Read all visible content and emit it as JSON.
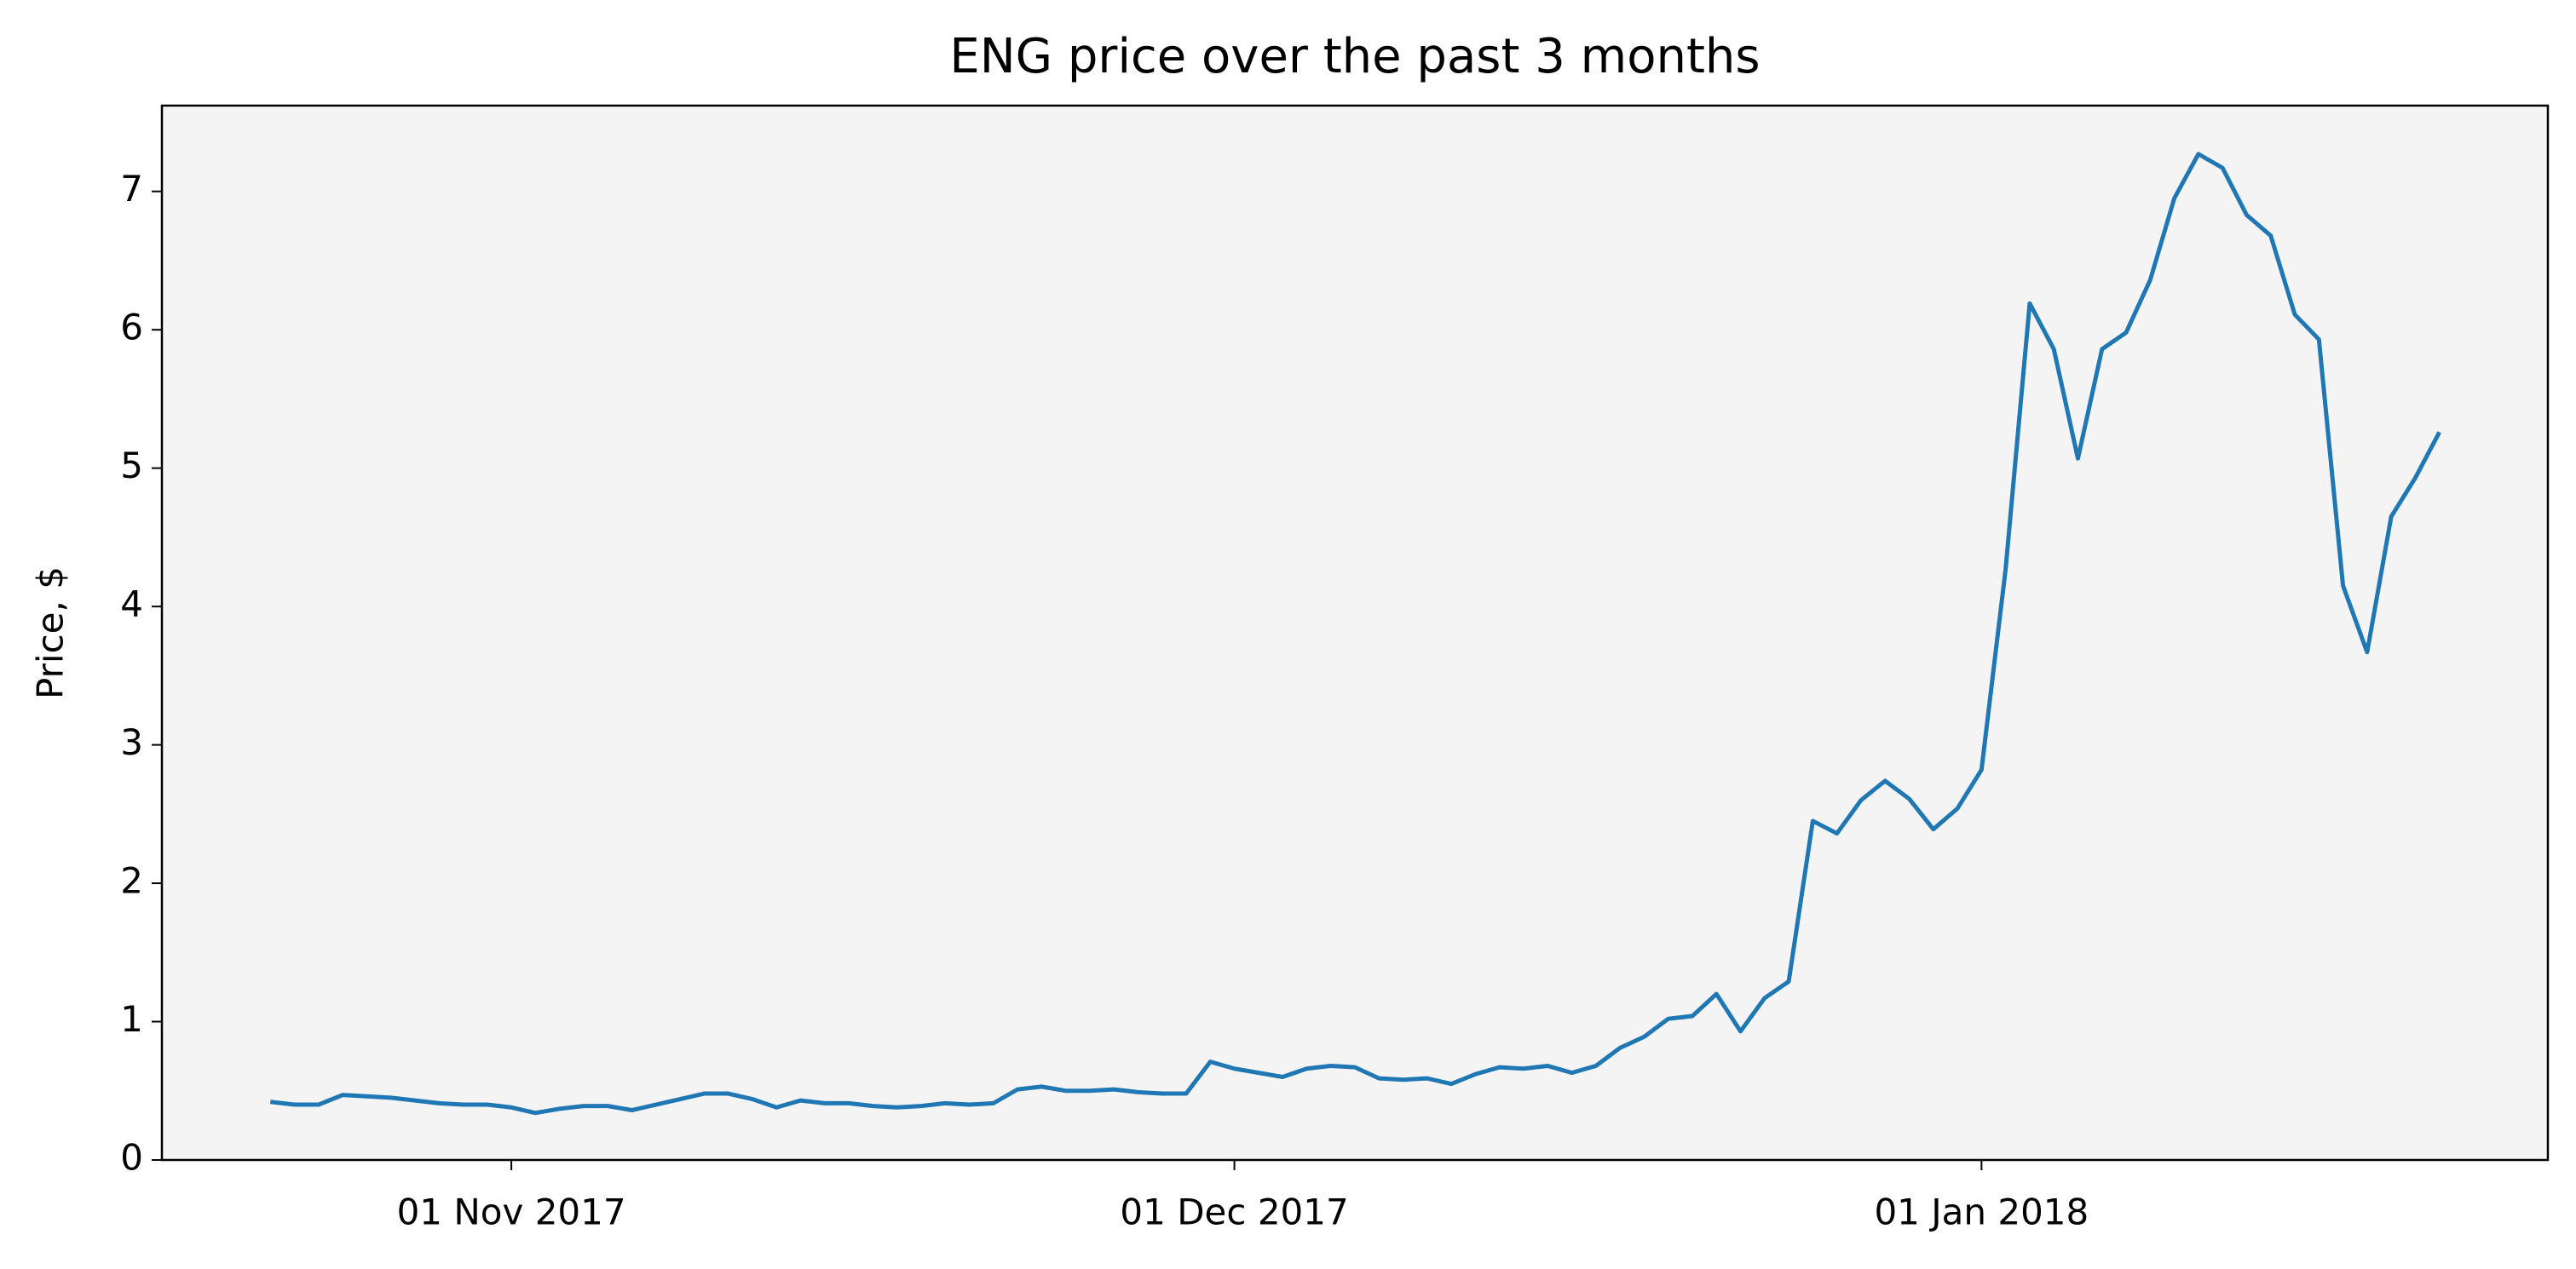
{
  "chart_data": {
    "type": "line",
    "title": "ENG price over the past 3 months",
    "y_label": "Price, $",
    "x": [
      "2017-10-22",
      "2017-10-23",
      "2017-10-24",
      "2017-10-25",
      "2017-10-26",
      "2017-10-27",
      "2017-10-28",
      "2017-10-29",
      "2017-10-30",
      "2017-10-31",
      "2017-11-01",
      "2017-11-02",
      "2017-11-03",
      "2017-11-04",
      "2017-11-05",
      "2017-11-06",
      "2017-11-07",
      "2017-11-08",
      "2017-11-09",
      "2017-11-10",
      "2017-11-11",
      "2017-11-12",
      "2017-11-13",
      "2017-11-14",
      "2017-11-15",
      "2017-11-16",
      "2017-11-17",
      "2017-11-18",
      "2017-11-19",
      "2017-11-20",
      "2017-11-21",
      "2017-11-22",
      "2017-11-23",
      "2017-11-24",
      "2017-11-25",
      "2017-11-26",
      "2017-11-27",
      "2017-11-28",
      "2017-11-29",
      "2017-11-30",
      "2017-12-01",
      "2017-12-02",
      "2017-12-03",
      "2017-12-04",
      "2017-12-05",
      "2017-12-06",
      "2017-12-07",
      "2017-12-08",
      "2017-12-09",
      "2017-12-10",
      "2017-12-11",
      "2017-12-12",
      "2017-12-13",
      "2017-12-14",
      "2017-12-15",
      "2017-12-16",
      "2017-12-17",
      "2017-12-18",
      "2017-12-19",
      "2017-12-20",
      "2017-12-21",
      "2017-12-22",
      "2017-12-23",
      "2017-12-24",
      "2017-12-25",
      "2017-12-26",
      "2017-12-27",
      "2017-12-28",
      "2017-12-29",
      "2017-12-30",
      "2017-12-31",
      "2018-01-01",
      "2018-01-02",
      "2018-01-03",
      "2018-01-04",
      "2018-01-05",
      "2018-01-06",
      "2018-01-07",
      "2018-01-08",
      "2018-01-09",
      "2018-01-10",
      "2018-01-11",
      "2018-01-12",
      "2018-01-13",
      "2018-01-14",
      "2018-01-15",
      "2018-01-16",
      "2018-01-17",
      "2018-01-18",
      "2018-01-19",
      "2018-01-20"
    ],
    "series": [
      {
        "color": "#1f77b4",
        "values": [
          0.42,
          0.4,
          0.4,
          0.47,
          0.46,
          0.45,
          0.43,
          0.41,
          0.4,
          0.4,
          0.38,
          0.34,
          0.37,
          0.39,
          0.39,
          0.36,
          0.4,
          0.44,
          0.48,
          0.48,
          0.44,
          0.38,
          0.43,
          0.41,
          0.41,
          0.39,
          0.38,
          0.39,
          0.41,
          0.4,
          0.41,
          0.51,
          0.53,
          0.5,
          0.5,
          0.51,
          0.49,
          0.48,
          0.48,
          0.71,
          0.66,
          0.63,
          0.6,
          0.66,
          0.68,
          0.67,
          0.59,
          0.58,
          0.59,
          0.55,
          0.62,
          0.67,
          0.66,
          0.68,
          0.63,
          0.68,
          0.81,
          0.89,
          1.02,
          1.04,
          1.2,
          0.93,
          1.17,
          1.29,
          2.45,
          2.36,
          2.6,
          2.74,
          2.61,
          2.39,
          2.54,
          2.82,
          4.27,
          6.19,
          5.86,
          5.07,
          5.86,
          5.98,
          6.36,
          6.95,
          7.27,
          7.17,
          6.83,
          6.68,
          6.11,
          5.93,
          4.15,
          3.67,
          4.65,
          4.93,
          5.26
        ]
      }
    ],
    "xlim": [
      "2017-10-17T12:00",
      "2018-01-24T12:00"
    ],
    "xticks": [
      {
        "value": "2017-11-01",
        "label": "01 Nov 2017"
      },
      {
        "value": "2017-12-01",
        "label": "01 Dec 2017"
      },
      {
        "value": "2018-01-01",
        "label": "01 Jan 2018"
      }
    ],
    "ylim": [
      0,
      7.62
    ],
    "yticks": [
      0,
      1,
      2,
      3,
      4,
      5,
      6,
      7
    ],
    "grid": false,
    "background": "#f4f4f4"
  }
}
